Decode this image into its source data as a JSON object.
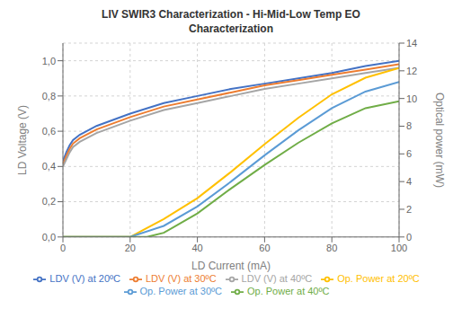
{
  "chart_data": {
    "type": "line",
    "title": "LIV SWIR3 Characterization - Hi-Mid-Low Temp EO\nCharacterization",
    "xlabel": "LD Current (mA)",
    "ylabel": "LD Voltage (V)",
    "y2label": "Optical power (mW)",
    "xlim": [
      0,
      100
    ],
    "xticks": [
      0,
      20,
      40,
      60,
      80,
      100
    ],
    "ylim": [
      0,
      1.1
    ],
    "yticks": [
      {
        "value": 0,
        "label": "0,0"
      },
      {
        "value": 0.2,
        "label": "0,2"
      },
      {
        "value": 0.4,
        "label": "0,4"
      },
      {
        "value": 0.6,
        "label": "0,6"
      },
      {
        "value": 0.8,
        "label": "0,8"
      },
      {
        "value": 1.0,
        "label": "1,0"
      }
    ],
    "y2lim": [
      0,
      14
    ],
    "y2ticks": [
      0,
      2,
      4,
      6,
      8,
      10,
      12,
      14
    ],
    "grid": true,
    "series": [
      {
        "name": "LDV (V) at 20ºC",
        "color": "#4472c4",
        "x": [
          0,
          1,
          2,
          3,
          5,
          10,
          20,
          30,
          40,
          50,
          60,
          70,
          80,
          90,
          100
        ],
        "values": [
          0.43,
          0.48,
          0.52,
          0.55,
          0.58,
          0.63,
          0.7,
          0.76,
          0.8,
          0.84,
          0.87,
          0.9,
          0.93,
          0.97,
          1.0
        ]
      },
      {
        "name": "LDV (V) at 30ºC",
        "color": "#ed7d31",
        "x": [
          0,
          1,
          2,
          3,
          5,
          10,
          20,
          30,
          40,
          50,
          60,
          70,
          80,
          90,
          100
        ],
        "values": [
          0.41,
          0.46,
          0.5,
          0.53,
          0.56,
          0.61,
          0.68,
          0.74,
          0.78,
          0.82,
          0.86,
          0.89,
          0.92,
          0.95,
          0.98
        ]
      },
      {
        "name": "LDV (V) at 40ºC",
        "color": "#a5a5a5",
        "x": [
          0,
          1,
          2,
          3,
          5,
          10,
          20,
          30,
          40,
          50,
          60,
          70,
          80,
          90,
          100
        ],
        "values": [
          0.4,
          0.44,
          0.48,
          0.51,
          0.54,
          0.59,
          0.66,
          0.72,
          0.76,
          0.8,
          0.84,
          0.87,
          0.9,
          0.93,
          0.96
        ]
      },
      {
        "name": "Op. Power at 20ºC",
        "color": "#ffc000",
        "axis": "y2",
        "x": [
          0,
          20,
          30,
          40,
          50,
          60,
          70,
          80,
          90,
          100
        ],
        "values": [
          0,
          0,
          1.3,
          2.8,
          4.7,
          6.7,
          8.6,
          10.3,
          11.5,
          12.2
        ]
      },
      {
        "name": "Op. Power at 30ºC",
        "color": "#5b9bd5",
        "axis": "y2",
        "x": [
          0,
          20,
          30,
          40,
          50,
          60,
          70,
          80,
          90,
          100
        ],
        "values": [
          0,
          0,
          0.8,
          2.2,
          4.0,
          5.9,
          7.7,
          9.3,
          10.5,
          11.2
        ]
      },
      {
        "name": "Op. Power at 40ºC",
        "color": "#70ad47",
        "axis": "y2",
        "x": [
          0,
          20,
          25,
          30,
          40,
          50,
          60,
          70,
          80,
          90,
          100
        ],
        "values": [
          0,
          0,
          0,
          0.3,
          1.7,
          3.5,
          5.2,
          6.8,
          8.2,
          9.3,
          9.8
        ]
      }
    ]
  }
}
